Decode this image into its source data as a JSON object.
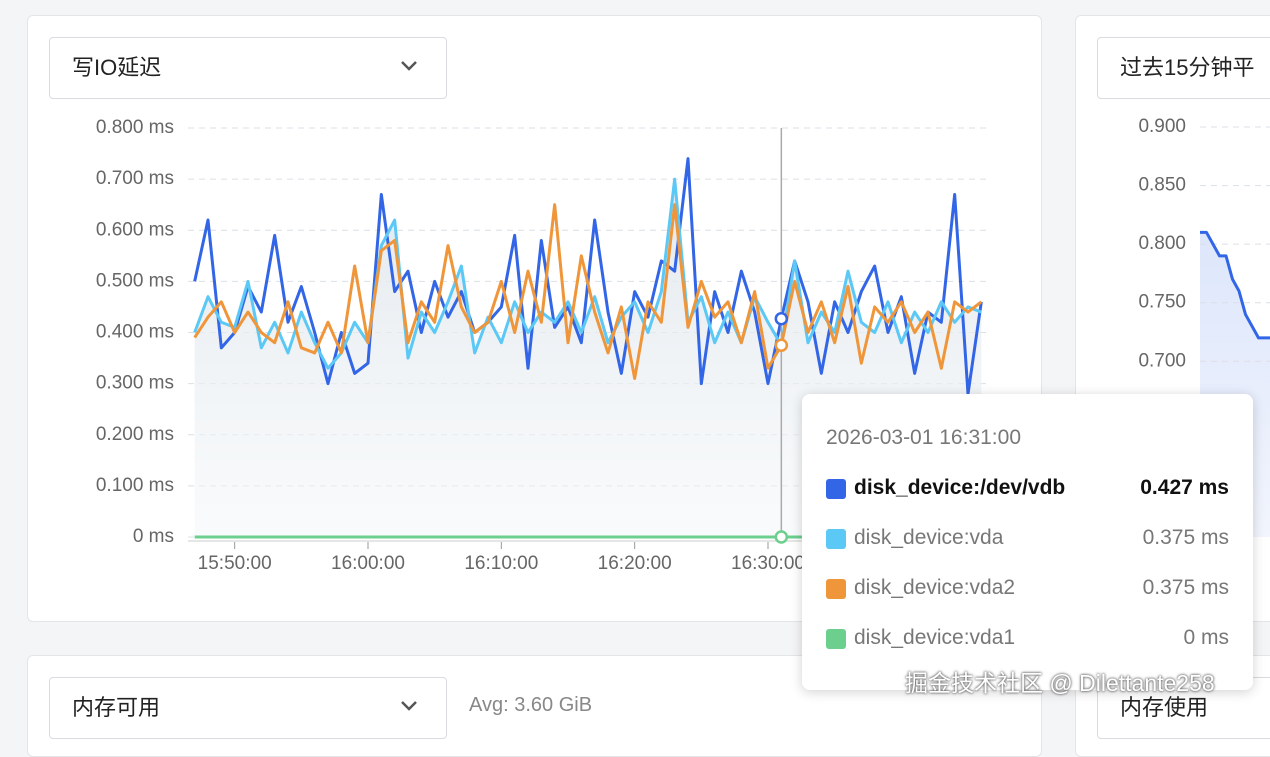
{
  "chart_data": [
    {
      "type": "line",
      "title": "写IO延迟",
      "x": [
        "15:47:00",
        "15:48:00",
        "15:49:00",
        "15:50:00",
        "15:51:00",
        "15:52:00",
        "15:53:00",
        "15:54:00",
        "15:55:00",
        "15:56:00",
        "15:57:00",
        "15:58:00",
        "15:59:00",
        "16:00:00",
        "16:01:00",
        "16:02:00",
        "16:03:00",
        "16:04:00",
        "16:05:00",
        "16:06:00",
        "16:07:00",
        "16:08:00",
        "16:09:00",
        "16:10:00",
        "16:11:00",
        "16:12:00",
        "16:13:00",
        "16:14:00",
        "16:15:00",
        "16:16:00",
        "16:17:00",
        "16:18:00",
        "16:19:00",
        "16:20:00",
        "16:21:00",
        "16:22:00",
        "16:23:00",
        "16:24:00",
        "16:25:00",
        "16:26:00",
        "16:27:00",
        "16:28:00",
        "16:29:00",
        "16:30:00",
        "16:31:00",
        "16:32:00",
        "16:33:00",
        "16:34:00",
        "16:35:00",
        "16:36:00",
        "16:37:00",
        "16:38:00",
        "16:39:00",
        "16:40:00",
        "16:41:00",
        "16:42:00",
        "16:43:00",
        "16:44:00",
        "16:45:00",
        "16:46:00"
      ],
      "xlim": [
        "15:46:30",
        "16:46:30"
      ],
      "xticks": [
        "15:50:00",
        "16:00:00",
        "16:10:00",
        "16:20:00",
        "16:30:00"
      ],
      "ylim": [
        0,
        0.8
      ],
      "yticks": [
        {
          "value": 0,
          "label": "0 ms"
        },
        {
          "value": 0.1,
          "label": "0.100 ms"
        },
        {
          "value": 0.2,
          "label": "0.200 ms"
        },
        {
          "value": 0.3,
          "label": "0.300 ms"
        },
        {
          "value": 0.4,
          "label": "0.400 ms"
        },
        {
          "value": 0.5,
          "label": "0.500 ms"
        },
        {
          "value": 0.6,
          "label": "0.600 ms"
        },
        {
          "value": 0.7,
          "label": "0.700 ms"
        },
        {
          "value": 0.8,
          "label": "0.800 ms"
        }
      ],
      "grid": true,
      "series": [
        {
          "name": "disk_device:/dev/vdb",
          "color": "#3366e6",
          "values": [
            0.5,
            0.62,
            0.37,
            0.4,
            0.49,
            0.44,
            0.59,
            0.42,
            0.49,
            0.4,
            0.3,
            0.4,
            0.32,
            0.34,
            0.67,
            0.48,
            0.52,
            0.4,
            0.5,
            0.43,
            0.48,
            0.4,
            0.42,
            0.45,
            0.59,
            0.33,
            0.58,
            0.41,
            0.45,
            0.38,
            0.62,
            0.44,
            0.32,
            0.48,
            0.43,
            0.54,
            0.52,
            0.74,
            0.3,
            0.48,
            0.4,
            0.52,
            0.44,
            0.3,
            0.427,
            0.54,
            0.46,
            0.32,
            0.46,
            0.4,
            0.48,
            0.53,
            0.4,
            0.47,
            0.32,
            0.44,
            0.42,
            0.67,
            0.28,
            0.46
          ]
        },
        {
          "name": "disk_device:vda",
          "color": "#5bc8f5",
          "area": true,
          "values": [
            0.4,
            0.47,
            0.42,
            0.41,
            0.5,
            0.37,
            0.42,
            0.36,
            0.44,
            0.38,
            0.33,
            0.36,
            0.42,
            0.38,
            0.57,
            0.62,
            0.35,
            0.44,
            0.4,
            0.46,
            0.53,
            0.36,
            0.43,
            0.38,
            0.46,
            0.4,
            0.44,
            0.42,
            0.46,
            0.4,
            0.47,
            0.38,
            0.43,
            0.46,
            0.4,
            0.48,
            0.7,
            0.42,
            0.47,
            0.38,
            0.44,
            0.38,
            0.47,
            0.42,
            0.375,
            0.54,
            0.38,
            0.44,
            0.4,
            0.52,
            0.42,
            0.4,
            0.46,
            0.38,
            0.44,
            0.4,
            0.46,
            0.42,
            0.45,
            0.44
          ]
        },
        {
          "name": "disk_device:vda2",
          "color": "#f0963a",
          "values": [
            0.39,
            0.43,
            0.46,
            0.4,
            0.44,
            0.4,
            0.38,
            0.46,
            0.37,
            0.36,
            0.42,
            0.36,
            0.53,
            0.38,
            0.56,
            0.58,
            0.38,
            0.46,
            0.42,
            0.57,
            0.45,
            0.4,
            0.42,
            0.5,
            0.4,
            0.52,
            0.42,
            0.65,
            0.38,
            0.55,
            0.44,
            0.36,
            0.45,
            0.31,
            0.46,
            0.42,
            0.65,
            0.41,
            0.5,
            0.43,
            0.46,
            0.38,
            0.48,
            0.33,
            0.375,
            0.5,
            0.4,
            0.46,
            0.38,
            0.49,
            0.34,
            0.45,
            0.42,
            0.46,
            0.4,
            0.44,
            0.33,
            0.46,
            0.44,
            0.46
          ]
        },
        {
          "name": "disk_device:vda1",
          "color": "#6ccf8e",
          "values": [
            0,
            0,
            0,
            0,
            0,
            0,
            0,
            0,
            0,
            0,
            0,
            0,
            0,
            0,
            0,
            0,
            0,
            0,
            0,
            0,
            0,
            0,
            0,
            0,
            0,
            0,
            0,
            0,
            0,
            0,
            0,
            0,
            0,
            0,
            0,
            0,
            0,
            0,
            0,
            0,
            0,
            0,
            0,
            0,
            0,
            0,
            0,
            0,
            0,
            0,
            0,
            0,
            0,
            0,
            0,
            0,
            0,
            0,
            0,
            0
          ]
        }
      ]
    },
    {
      "type": "line",
      "title": "过去15分钟平",
      "ylim": [
        0.55,
        0.9
      ],
      "yticks": [
        {
          "value": 0.7,
          "label": "0.700"
        },
        {
          "value": 0.75,
          "label": "0.750"
        },
        {
          "value": 0.8,
          "label": "0.800"
        },
        {
          "value": 0.85,
          "label": "0.850"
        },
        {
          "value": 0.9,
          "label": "0.900"
        }
      ],
      "grid": true,
      "series": [
        {
          "color": "#3366e6",
          "area": true,
          "values": [
            0.81,
            0.81,
            0.8,
            0.79,
            0.79,
            0.77,
            0.76,
            0.74,
            0.73,
            0.72,
            0.72,
            0.72
          ]
        }
      ]
    }
  ],
  "tooltip": {
    "time": "2026-03-01 16:31:00",
    "labels": [
      "0.427 ms",
      "0.375 ms",
      "0.375 ms",
      "0 ms"
    ]
  },
  "bottom": {
    "left_title": "内存可用",
    "avg": "Avg: 3.60 GiB",
    "right_title": "内存使用"
  },
  "watermark": "掘金技术社区 @ Dilettante258"
}
